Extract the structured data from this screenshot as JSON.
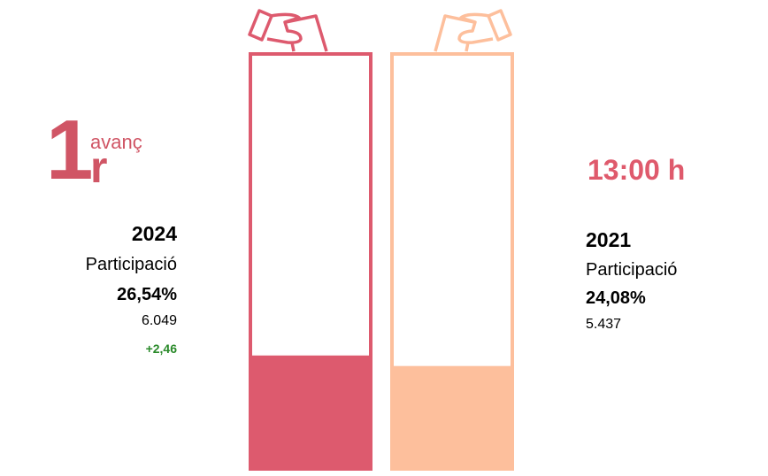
{
  "round": {
    "number": "1",
    "suffix": "r",
    "label": "avanç"
  },
  "time": "13:00 h",
  "chart_data": {
    "type": "bar",
    "categories": [
      "2024",
      "2021"
    ],
    "values": [
      26.54,
      24.08
    ],
    "ylim": [
      0,
      100
    ],
    "colors": [
      "#dd5a6e",
      "#fdbf9c"
    ],
    "series_info": [
      {
        "year": "2024",
        "label": "Participació",
        "percent": "26,54%",
        "votes": "6.049",
        "diff": "+2,46"
      },
      {
        "year": "2021",
        "label": "Participació",
        "percent": "24,08%",
        "votes": "5.437"
      }
    ]
  }
}
